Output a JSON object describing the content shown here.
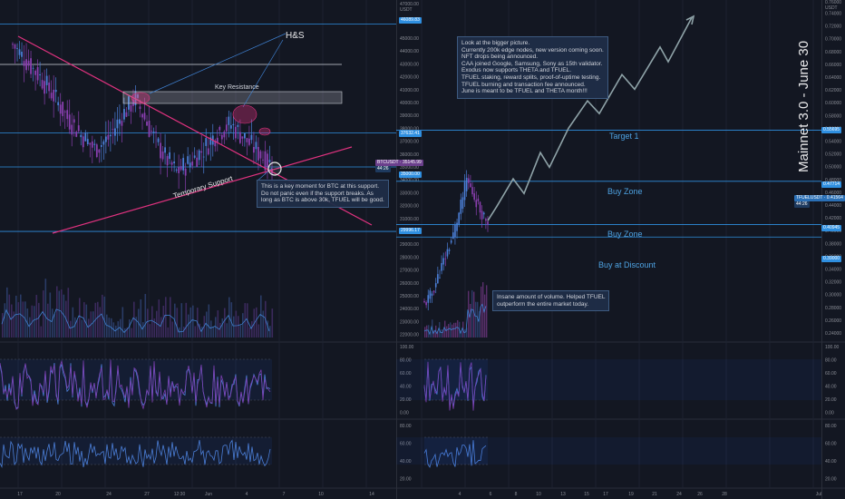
{
  "colors": {
    "background": "#131722",
    "grid": "#1c2130",
    "accent_pink": "#e0327f",
    "level_blue": "#2f8fe0",
    "wave_purple": "#7b3fb0",
    "wave_blue": "#4b7fd8",
    "projection": "#8fa3a8",
    "text": "#8a8d96"
  },
  "btc_panel": {
    "symbol_badge": "BTCUSDT · 35145.99",
    "symbol_sub": "44:26",
    "price_axis": [
      "45000.00",
      "44000.00",
      "43000.00",
      "42000.00",
      "41000.00",
      "40000.00",
      "39000.00",
      "38000.00",
      "37000.00",
      "36000.00",
      "35000.00",
      "34000.00",
      "33000.00",
      "32000.00",
      "31000.00",
      "30000.00",
      "29000.00",
      "28000.00",
      "27000.00",
      "26000.00",
      "25000.00",
      "24000.00",
      "23000.00",
      "22000.00"
    ],
    "axis_top": [
      "47000.00",
      "USDT"
    ],
    "level_badges": [
      "46089.83",
      "37632.41",
      "35000.00",
      "29996.17"
    ],
    "hs_label": "H&S",
    "key_resistance": "Key Resistance",
    "temporary_support": "Temporary Support",
    "note_lines": [
      "This is a key moment for BTC at this support.",
      "Do not panic even if the support breaks. As",
      "long as BTC is above 30k, TFUEL will be good."
    ],
    "osc_axis": [
      "100.00",
      "80.00",
      "60.00",
      "40.00",
      "20.00",
      "0.00"
    ],
    "rsi_axis": [
      "80.00",
      "60.00",
      "40.00",
      "20.00"
    ],
    "date_axis": [
      "17",
      "20",
      "24",
      "27",
      "12:30",
      "Jun",
      "4",
      "7",
      "10",
      "14"
    ]
  },
  "tfuel_panel": {
    "symbol_badge": "TFUELUSDT · 0.41564",
    "symbol_sub": "44:26",
    "chart_title": "Mainnet 3.0 - June 30",
    "price_axis": [
      "0.74000",
      "0.72000",
      "0.70000",
      "0.68000",
      "0.66000",
      "0.64000",
      "0.62000",
      "0.60000",
      "0.58000",
      "0.56000",
      "0.54000",
      "0.52000",
      "0.50000",
      "0.48000",
      "0.46000",
      "0.44000",
      "0.42000",
      "0.40000",
      "0.38000",
      "0.36000",
      "0.34000",
      "0.32000",
      "0.30000",
      "0.28000",
      "0.26000",
      "0.24000"
    ],
    "axis_top": [
      "0.76000",
      "USDT"
    ],
    "level_badges": [
      "0.55695",
      "0.47714",
      "0.40945",
      "0.39000"
    ],
    "levels": [
      "Target 1",
      "Buy Zone",
      "Buy Zone",
      "Buy at Discount"
    ],
    "note_lines": [
      "Look at the bigger picture.",
      "Currently 200k edge nodes, new version coming soon.",
      "NFT drops being announced.",
      "CAA joined Google, Samsung, Sony as 15th validator.",
      "Exodus now supports THETA and TFUEL.",
      "TFUEL staking, reward splits, proof-of-uptime testing.",
      "TFUEL burning and transaction fee announced.",
      "June is meant to be TFUEL and THETA month!!!"
    ],
    "volume_note": [
      "Insane amount of volume. Helped TFUEL",
      "outperform the entire market today."
    ],
    "osc_axis": [
      "100.00",
      "80.00",
      "60.00",
      "40.00",
      "20.00",
      "0.00"
    ],
    "rsi_axis": [
      "80.00",
      "60.00",
      "40.00",
      "20.00"
    ],
    "date_axis": [
      "4",
      "6",
      "8",
      "10",
      "13",
      "15",
      "17",
      "19",
      "21",
      "24",
      "26",
      "28",
      "Jul"
    ]
  },
  "chart_data": [
    {
      "type": "line",
      "title": "",
      "series": [
        {
          "values": [
            44500,
            43200,
            42000,
            40500,
            38800,
            37500,
            36400,
            37200,
            39000,
            40300,
            38000,
            36000,
            34600,
            35400,
            36400,
            37700,
            38300,
            37200,
            36100,
            35146
          ]
        }
      ],
      "ylim": [
        22000,
        47000
      ],
      "levels": [
        46089.83,
        37632.41,
        35000,
        29996.17
      ]
    },
    {
      "type": "line",
      "title": "Mainnet 3.0 - June 30",
      "series": [
        {
          "values": [
            0.285,
            0.3,
            0.33,
            0.36,
            0.39,
            0.43,
            0.48,
            0.455,
            0.43,
            0.41564
          ]
        },
        {
          "values": [
            0.41564,
            0.438,
            0.481,
            0.458,
            0.522,
            0.499,
            0.56,
            0.603,
            0.583,
            0.644,
            0.621,
            0.687,
            0.664,
            0.733
          ]
        }
      ],
      "ylim": [
        0.22,
        0.76
      ],
      "levels": [
        0.55695,
        0.47714,
        0.40945,
        0.39
      ]
    }
  ]
}
